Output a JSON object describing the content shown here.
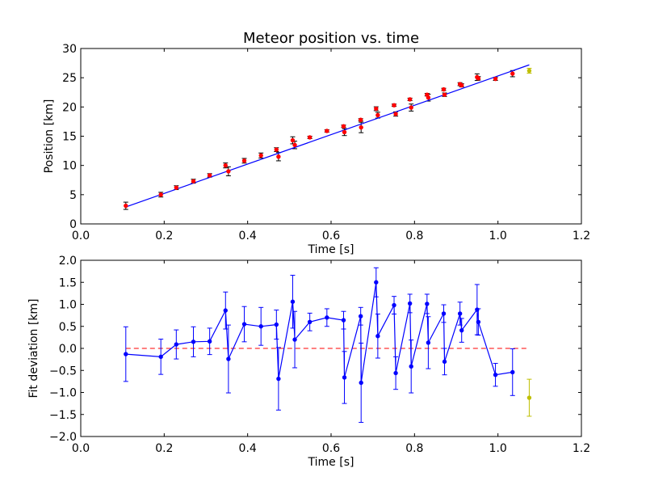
{
  "figure": {
    "title": "Meteor position vs. time"
  },
  "colors": {
    "fit_line": "#0000ff",
    "points": "#ff0000",
    "outlier": "#bfbf00",
    "residual_line": "#0000ff",
    "zero_line": "#ff0000"
  },
  "chart_data": [
    {
      "type": "scatter",
      "title": "Meteor position vs. time",
      "xlabel": "Time [s]",
      "ylabel": "Position [km]",
      "xlim": [
        0.0,
        1.2
      ],
      "ylim": [
        0,
        30
      ],
      "xticks": [
        "0.0",
        "0.2",
        "0.4",
        "0.6",
        "0.8",
        "1.0",
        "1.2"
      ],
      "yticks": [
        "0",
        "5",
        "10",
        "15",
        "20",
        "25",
        "30"
      ],
      "grid": false,
      "legend": "none",
      "fit_line": {
        "x": [
          0.108,
          1.075
        ],
        "y": [
          2.9,
          27.2
        ]
      },
      "series": [
        {
          "x": [
            0.108,
            0.192,
            0.229,
            0.27,
            0.309,
            0.347,
            0.354,
            0.392,
            0.432,
            0.469,
            0.474,
            0.508,
            0.513,
            0.549,
            0.59,
            0.63,
            0.632,
            0.671,
            0.672,
            0.708,
            0.712,
            0.751,
            0.755,
            0.789,
            0.792,
            0.83,
            0.833,
            0.87,
            0.872,
            0.909,
            0.913,
            0.95,
            0.953,
            0.994,
            1.035,
            1.075
          ],
          "y": [
            3.1,
            5.0,
            6.2,
            7.3,
            8.3,
            10.0,
            9.0,
            10.8,
            11.7,
            12.7,
            11.5,
            14.3,
            13.5,
            14.8,
            15.9,
            16.7,
            15.7,
            17.8,
            16.5,
            19.7,
            18.6,
            20.3,
            18.8,
            21.3,
            19.9,
            22.1,
            21.6,
            23.0,
            22.1,
            23.9,
            23.7,
            25.1,
            24.9,
            24.8,
            25.7,
            26.2
          ],
          "yerr": [
            0.62,
            0.4,
            0.33,
            0.34,
            0.3,
            0.42,
            0.77,
            0.4,
            0.43,
            0.33,
            0.71,
            0.6,
            0.64,
            0.2,
            0.2,
            0.2,
            0.59,
            0.2,
            0.9,
            0.33,
            0.5,
            0.2,
            0.37,
            0.21,
            0.6,
            0.22,
            0.59,
            0.2,
            0.3,
            0.26,
            0.27,
            0.57,
            0.3,
            0.26,
            0.53,
            0.42
          ],
          "outlier_index": 35
        }
      ]
    },
    {
      "type": "line",
      "xlabel": "Time [s]",
      "ylabel": "Fit deviation [km]",
      "xlim": [
        0.0,
        1.2
      ],
      "ylim": [
        -2.0,
        2.0
      ],
      "xticks": [
        "0.0",
        "0.2",
        "0.4",
        "0.6",
        "0.8",
        "1.0",
        "1.2"
      ],
      "yticks": [
        "2.0",
        "1.5",
        "1.0",
        "0.5",
        "0.0",
        "−0.5",
        "−1.0",
        "−1.5",
        "−2.0"
      ],
      "grid": false,
      "legend": "none",
      "zero_line": {
        "x": [
          0.108,
          1.075
        ],
        "y": [
          0.0,
          0.0
        ]
      },
      "series": [
        {
          "x": [
            0.108,
            0.192,
            0.229,
            0.27,
            0.309,
            0.347,
            0.354,
            0.392,
            0.432,
            0.469,
            0.474,
            0.508,
            0.513,
            0.549,
            0.59,
            0.63,
            0.632,
            0.671,
            0.672,
            0.708,
            0.712,
            0.751,
            0.755,
            0.789,
            0.792,
            0.83,
            0.833,
            0.87,
            0.872,
            0.909,
            0.913,
            0.95,
            0.953,
            0.994,
            1.035,
            1.075
          ],
          "y": [
            -0.13,
            -0.19,
            0.09,
            0.15,
            0.16,
            0.86,
            -0.24,
            0.55,
            0.5,
            0.54,
            -0.69,
            1.06,
            0.2,
            0.6,
            0.7,
            0.64,
            -0.66,
            0.73,
            -0.78,
            1.5,
            0.28,
            0.98,
            -0.56,
            1.02,
            -0.41,
            1.01,
            0.13,
            0.79,
            -0.3,
            0.79,
            0.41,
            0.88,
            0.6,
            -0.6,
            -0.54,
            -1.12
          ],
          "yerr": [
            0.62,
            0.4,
            0.33,
            0.34,
            0.3,
            0.42,
            0.77,
            0.4,
            0.43,
            0.33,
            0.71,
            0.6,
            0.64,
            0.2,
            0.2,
            0.2,
            0.59,
            0.2,
            0.9,
            0.33,
            0.5,
            0.2,
            0.37,
            0.21,
            0.6,
            0.22,
            0.59,
            0.2,
            0.3,
            0.26,
            0.27,
            0.57,
            0.3,
            0.26,
            0.53,
            0.42
          ],
          "outlier_index": 35
        }
      ]
    }
  ]
}
